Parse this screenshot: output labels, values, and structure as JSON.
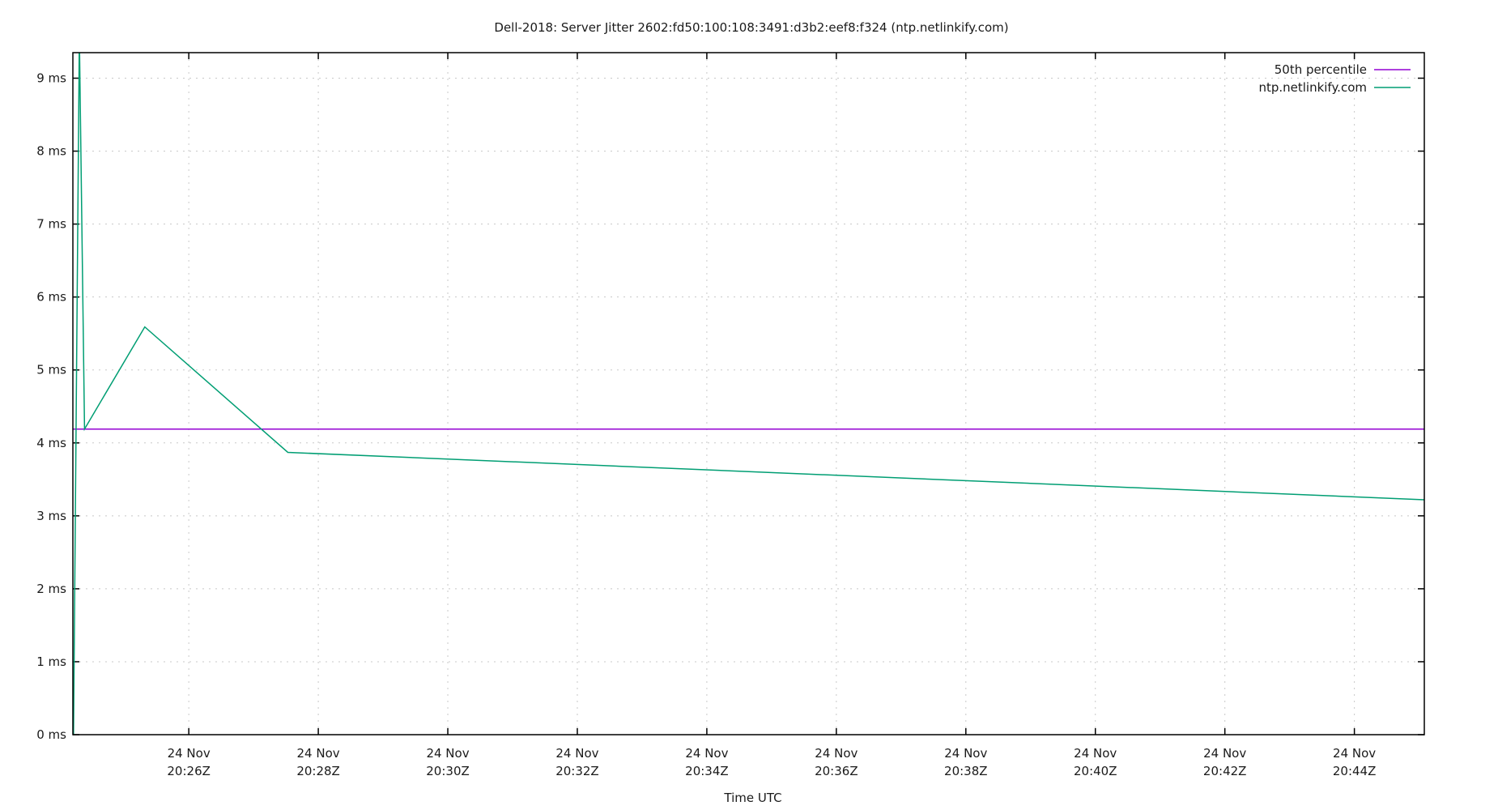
{
  "chart_data": {
    "type": "line",
    "title": "Dell-2018: Server Jitter 2602:fd50:100:108:3491:d3b2:eef8:f324 (ntp.netlinkify.com)",
    "xlabel": "Time UTC",
    "ylabel": "",
    "x_ticks": [
      {
        "line1": "24 Nov",
        "line2": "20:26Z",
        "minute": 26
      },
      {
        "line1": "24 Nov",
        "line2": "20:28Z",
        "minute": 28
      },
      {
        "line1": "24 Nov",
        "line2": "20:30Z",
        "minute": 30
      },
      {
        "line1": "24 Nov",
        "line2": "20:32Z",
        "minute": 32
      },
      {
        "line1": "24 Nov",
        "line2": "20:34Z",
        "minute": 34
      },
      {
        "line1": "24 Nov",
        "line2": "20:36Z",
        "minute": 36
      },
      {
        "line1": "24 Nov",
        "line2": "20:38Z",
        "minute": 38
      },
      {
        "line1": "24 Nov",
        "line2": "20:40Z",
        "minute": 40
      },
      {
        "line1": "24 Nov",
        "line2": "20:42Z",
        "minute": 42
      },
      {
        "line1": "24 Nov",
        "line2": "20:44Z",
        "minute": 44
      }
    ],
    "y_ticks": [
      {
        "label": "0 ms",
        "value": 0
      },
      {
        "label": "1 ms",
        "value": 1
      },
      {
        "label": "2 ms",
        "value": 2
      },
      {
        "label": "3 ms",
        "value": 3
      },
      {
        "label": "4 ms",
        "value": 4
      },
      {
        "label": "5 ms",
        "value": 5
      },
      {
        "label": "6 ms",
        "value": 6
      },
      {
        "label": "7 ms",
        "value": 7
      },
      {
        "label": "8 ms",
        "value": 8
      },
      {
        "label": "9 ms",
        "value": 9
      }
    ],
    "xlim_minutes_after_20h": [
      24.21,
      45.08
    ],
    "ylim": [
      0,
      9.35
    ],
    "grid": true,
    "legend_position": "top-right",
    "series": [
      {
        "name": "50th percentile",
        "color": "#9400d3",
        "x_minutes_after_20h": [
          24.21,
          45.08
        ],
        "values": [
          4.19,
          4.19
        ]
      },
      {
        "name": "ntp.netlinkify.com",
        "color": "#009e73",
        "x_minutes_after_20h": [
          24.22,
          24.31,
          24.39,
          25.32,
          27.53,
          45.08
        ],
        "values": [
          0.0,
          9.6,
          4.19,
          5.59,
          3.87,
          3.22
        ]
      }
    ]
  }
}
